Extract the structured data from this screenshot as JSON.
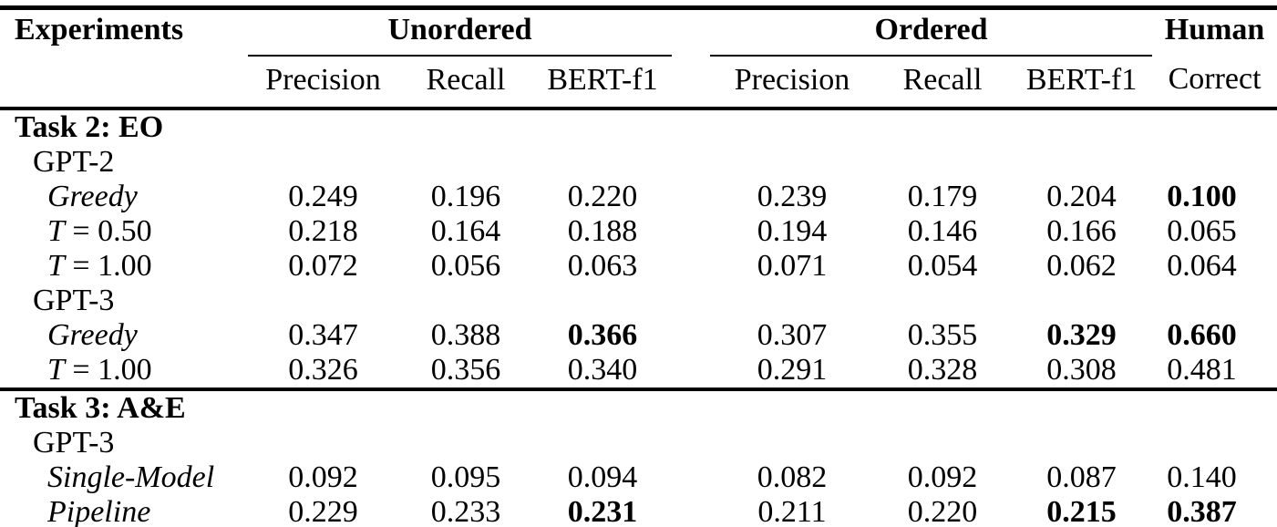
{
  "colors": {
    "background": "#ffffff",
    "text": "#000000",
    "rule": "#000000"
  },
  "table": {
    "header": {
      "experiments": "Experiments",
      "groups": [
        {
          "label": "Unordered",
          "columns": [
            "Precision",
            "Recall",
            "BERT-f1"
          ]
        },
        {
          "label": "Ordered",
          "columns": [
            "Precision",
            "Recall",
            "BERT-f1"
          ]
        }
      ],
      "human_label": "Human",
      "human_column": "Correct"
    },
    "sections": [
      {
        "title": "Task 2: EO",
        "rows": [
          {
            "label_italic": "",
            "label_rest": "GPT-2",
            "indent": 1,
            "values": [
              "",
              "",
              "",
              "",
              "",
              "",
              ""
            ],
            "bold": [
              false,
              false,
              false,
              false,
              false,
              false,
              false
            ]
          },
          {
            "label_italic": "Greedy",
            "label_rest": "",
            "indent": 2,
            "values": [
              "0.249",
              "0.196",
              "0.220",
              "0.239",
              "0.179",
              "0.204",
              "0.100"
            ],
            "bold": [
              false,
              false,
              false,
              false,
              false,
              false,
              true
            ]
          },
          {
            "label_italic": "T",
            "label_rest": " = 0.50",
            "indent": 2,
            "values": [
              "0.218",
              "0.164",
              "0.188",
              "0.194",
              "0.146",
              "0.166",
              "0.065"
            ],
            "bold": [
              false,
              false,
              false,
              false,
              false,
              false,
              false
            ]
          },
          {
            "label_italic": "T",
            "label_rest": " = 1.00",
            "indent": 2,
            "values": [
              "0.072",
              "0.056",
              "0.063",
              "0.071",
              "0.054",
              "0.062",
              "0.064"
            ],
            "bold": [
              false,
              false,
              false,
              false,
              false,
              false,
              false
            ]
          },
          {
            "label_italic": "",
            "label_rest": "GPT-3",
            "indent": 1,
            "values": [
              "",
              "",
              "",
              "",
              "",
              "",
              ""
            ],
            "bold": [
              false,
              false,
              false,
              false,
              false,
              false,
              false
            ]
          },
          {
            "label_italic": "Greedy",
            "label_rest": "",
            "indent": 2,
            "values": [
              "0.347",
              "0.388",
              "0.366",
              "0.307",
              "0.355",
              "0.329",
              "0.660"
            ],
            "bold": [
              false,
              false,
              true,
              false,
              false,
              true,
              true
            ]
          },
          {
            "label_italic": "T",
            "label_rest": " = 1.00",
            "indent": 2,
            "values": [
              "0.326",
              "0.356",
              "0.340",
              "0.291",
              "0.328",
              "0.308",
              "0.481"
            ],
            "bold": [
              false,
              false,
              false,
              false,
              false,
              false,
              false
            ]
          }
        ]
      },
      {
        "title": "Task 3: A&E",
        "rows": [
          {
            "label_italic": "",
            "label_rest": "GPT-3",
            "indent": 1,
            "values": [
              "",
              "",
              "",
              "",
              "",
              "",
              ""
            ],
            "bold": [
              false,
              false,
              false,
              false,
              false,
              false,
              false
            ]
          },
          {
            "label_italic": "Single-Model",
            "label_rest": "",
            "indent": 2,
            "values": [
              "0.092",
              "0.095",
              "0.094",
              "0.082",
              "0.092",
              "0.087",
              "0.140"
            ],
            "bold": [
              false,
              false,
              false,
              false,
              false,
              false,
              false
            ]
          },
          {
            "label_italic": "Pipeline",
            "label_rest": "",
            "indent": 2,
            "values": [
              "0.229",
              "0.233",
              "0.231",
              "0.211",
              "0.220",
              "0.215",
              "0.387"
            ],
            "bold": [
              false,
              false,
              true,
              false,
              false,
              true,
              true
            ]
          }
        ]
      }
    ]
  }
}
